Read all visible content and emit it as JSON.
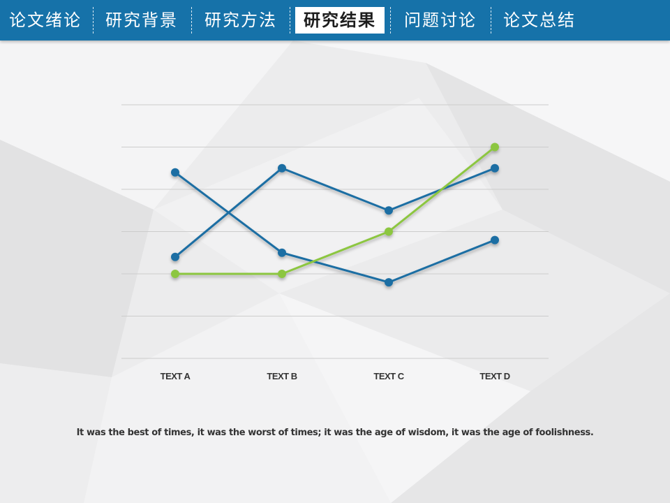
{
  "nav": {
    "items": [
      {
        "label": "论文绪论",
        "active": false
      },
      {
        "label": "研究背景",
        "active": false
      },
      {
        "label": "研究方法",
        "active": false
      },
      {
        "label": "研究结果",
        "active": true
      },
      {
        "label": "问题讨论",
        "active": false
      },
      {
        "label": "论文总结",
        "active": false
      }
    ]
  },
  "colors": {
    "nav_bg": "#1672a9",
    "series_blue": "#1a6ea3",
    "series_green": "#8cc63f",
    "gridline": "#cccccc",
    "background": "#eeeeef"
  },
  "chart_data": {
    "type": "line",
    "categories": [
      "TEXT A",
      "TEXT B",
      "TEXT C",
      "TEXT D"
    ],
    "ylim": [
      0,
      6
    ],
    "grid": true,
    "legend": "none",
    "series": [
      {
        "color": "#1a6ea3",
        "values": [
          4.4,
          2.5,
          1.8,
          2.8
        ]
      },
      {
        "color": "#1a6ea3",
        "values": [
          2.4,
          4.5,
          3.5,
          4.5
        ]
      },
      {
        "color": "#8cc63f",
        "values": [
          2.0,
          2.0,
          3.0,
          5.0
        ]
      }
    ]
  },
  "caption": "It was the best of times, it was the worst of times; it was the age of wisdom, it was the age of foolishness."
}
